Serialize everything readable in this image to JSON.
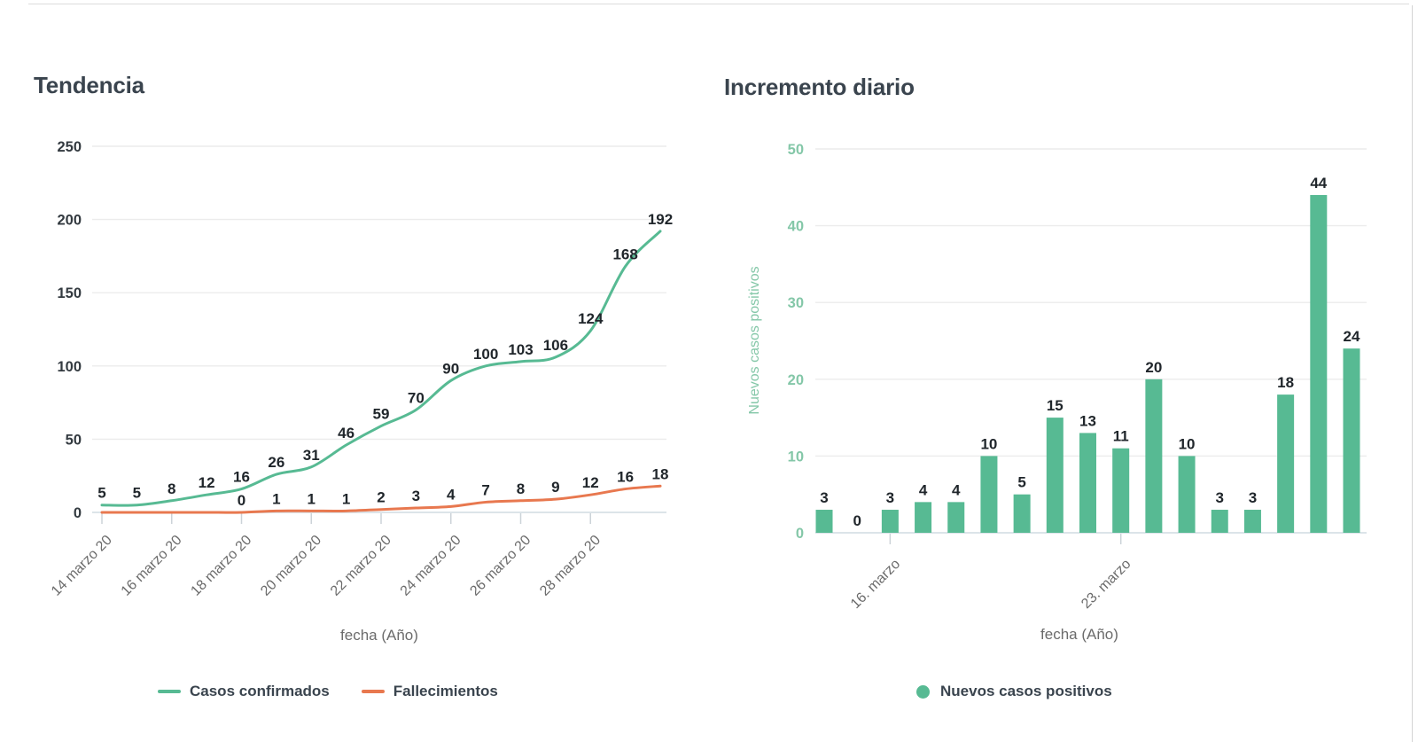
{
  "page": {
    "background": "#ffffff",
    "border_color": "#d9d9d9"
  },
  "colors": {
    "title_text": "#3a444e",
    "axis_text_dark": "#333a40",
    "axis_text_muted": "#6b6b6b",
    "axis_text_green": "#84c7a8",
    "data_label": "#20262b",
    "gridline": "#ececec",
    "axis_line": "#dce4e9",
    "tick_mark": "#ccd3d8",
    "series_green": "#57ba93",
    "series_orange": "#e8784f"
  },
  "chart_data": [
    {
      "type": "line",
      "title": "Tendencia",
      "xlabel": "fecha (Año)",
      "ylabel": "",
      "x_tick_labels": [
        "14 marzo 20",
        "16 marzo 20",
        "18 marzo 20",
        "20 marzo 20",
        "22 marzo 20",
        "24 marzo 20",
        "26 marzo 20",
        "28 marzo 20"
      ],
      "x_tick_indices": [
        0,
        2,
        4,
        6,
        8,
        10,
        12,
        14
      ],
      "n_points": 17,
      "ylim": [
        0,
        250
      ],
      "yticks": [
        0,
        50,
        100,
        150,
        200,
        250
      ],
      "grid": true,
      "legend_position": "bottom",
      "series": [
        {
          "name": "Casos confirmados",
          "color": "#57ba93",
          "values": [
            5,
            5,
            8,
            12,
            16,
            26,
            31,
            46,
            59,
            70,
            90,
            100,
            103,
            106,
            124,
            168,
            192
          ],
          "labels": [
            "5",
            "5",
            "8",
            "12",
            "16",
            "26",
            "31",
            "46",
            "59",
            "70",
            "90",
            "100",
            "103",
            "106",
            "124",
            "168",
            "192"
          ]
        },
        {
          "name": "Fallecimientos",
          "color": "#e8784f",
          "values": [
            0,
            0,
            0,
            0,
            0,
            1,
            1,
            1,
            2,
            3,
            4,
            7,
            8,
            9,
            12,
            16,
            18
          ],
          "labels": [
            "",
            "",
            "",
            "",
            "0",
            "1",
            "1",
            "1",
            "2",
            "3",
            "4",
            "7",
            "8",
            "9",
            "12",
            "16",
            "18"
          ]
        }
      ]
    },
    {
      "type": "bar",
      "title": "Incremento diario",
      "xlabel": "fecha (Año)",
      "ylabel": "Nuevos casos positivos",
      "x_tick_labels": [
        "16. marzo",
        "23. marzo"
      ],
      "x_tick_indices": [
        2,
        9
      ],
      "n_points": 17,
      "ylim": [
        0,
        50
      ],
      "yticks": [
        0,
        10,
        20,
        30,
        40,
        50
      ],
      "grid": true,
      "legend_position": "bottom",
      "series": [
        {
          "name": "Nuevos casos positivos",
          "color": "#57ba93",
          "values": [
            3,
            0,
            3,
            4,
            4,
            10,
            5,
            15,
            13,
            11,
            20,
            10,
            3,
            3,
            18,
            44,
            24
          ],
          "labels": [
            "3",
            "0",
            "3",
            "4",
            "4",
            "10",
            "5",
            "15",
            "13",
            "11",
            "20",
            "10",
            "3",
            "3",
            "18",
            "44",
            "24"
          ]
        }
      ]
    }
  ]
}
